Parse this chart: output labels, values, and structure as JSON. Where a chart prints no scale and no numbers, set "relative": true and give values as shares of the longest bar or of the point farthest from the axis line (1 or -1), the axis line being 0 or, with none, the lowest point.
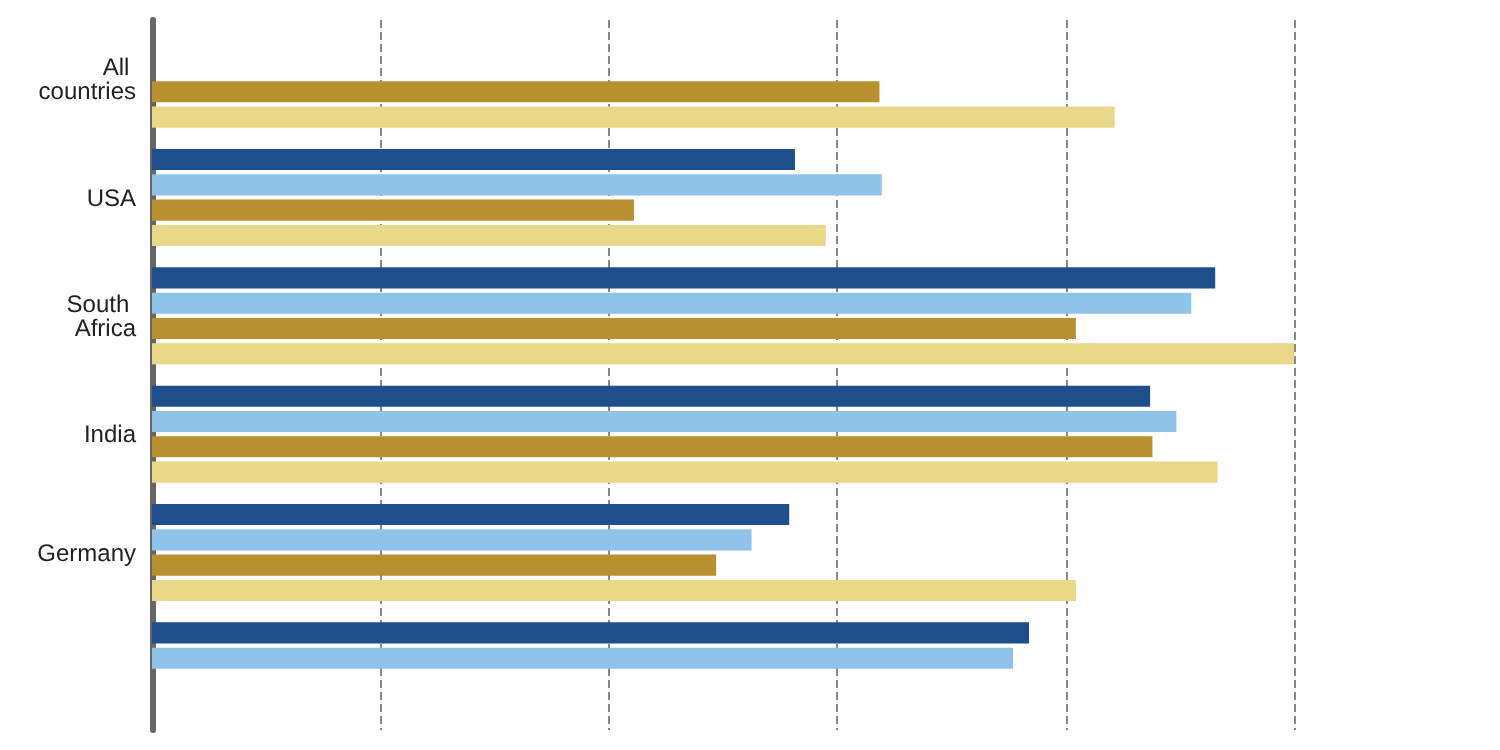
{
  "chart_data": {
    "type": "bar",
    "orientation": "horizontal",
    "relative": true,
    "grid": "x",
    "categories": [
      "All countries",
      "USA",
      "South Africa",
      "India",
      "Germany",
      null
    ],
    "series": [
      {
        "color": "#1f4e8c",
        "values": [
          null,
          0.563,
          0.931,
          0.874,
          0.558,
          0.768
        ]
      },
      {
        "color": "#8fc3ea",
        "values": [
          null,
          0.639,
          0.91,
          0.897,
          0.525,
          0.754
        ]
      },
      {
        "color": "#b8902f",
        "values": [
          0.637,
          0.422,
          0.809,
          0.876,
          0.494,
          null
        ]
      },
      {
        "color": "#ead88a",
        "values": [
          0.843,
          0.59,
          1,
          0.933,
          0.809,
          null
        ]
      }
    ]
  }
}
